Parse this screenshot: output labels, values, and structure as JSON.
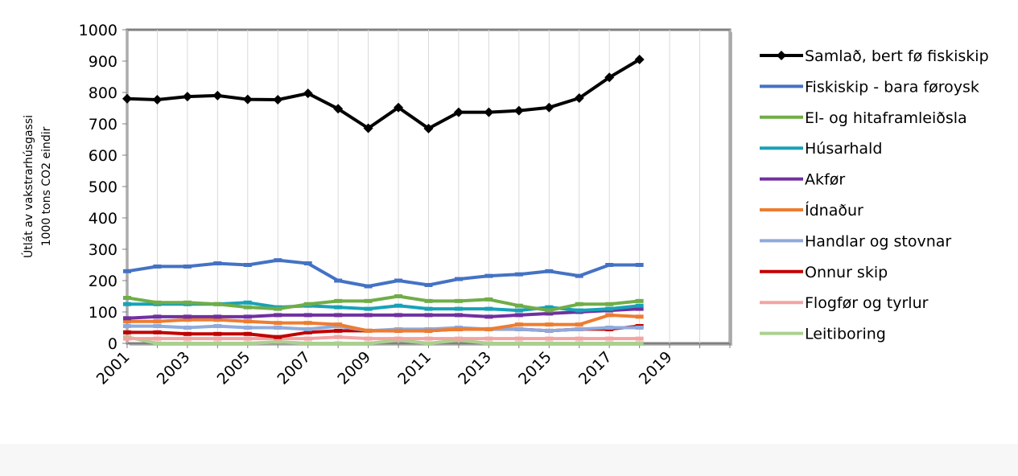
{
  "chart_data": {
    "type": "line",
    "title": "",
    "ylabel_lines": [
      "Útlát av vakstrarhúsgassi",
      "1000 tons CO2 eindir"
    ],
    "xlabel": "",
    "ylim": [
      0,
      1000
    ],
    "y_ticks": [
      "0",
      "100",
      "200",
      "300",
      "400",
      "500",
      "600",
      "700",
      "800",
      "900",
      "1000"
    ],
    "x_range": [
      2001,
      2021
    ],
    "x_ticks": [
      "2001",
      "2003",
      "2005",
      "2007",
      "2009",
      "2011",
      "2013",
      "2015",
      "2017",
      "2019"
    ],
    "x": [
      2001,
      2002,
      2003,
      2004,
      2005,
      2006,
      2007,
      2008,
      2009,
      2010,
      2011,
      2012,
      2013,
      2014,
      2015,
      2016,
      2017,
      2018
    ],
    "legend_position": "right",
    "series": [
      {
        "name": "Samlað, bert fø fiskiskip",
        "color": "#000000",
        "marker": "diamond",
        "values": [
          780,
          777,
          787,
          790,
          778,
          777,
          797,
          748,
          686,
          752,
          685,
          737,
          737,
          742,
          752,
          782,
          848,
          905
        ]
      },
      {
        "name": "Fiskiskip - bara føroysk",
        "color": "#4472c4",
        "marker": "dash",
        "values": [
          230,
          245,
          245,
          255,
          250,
          265,
          255,
          200,
          182,
          200,
          186,
          205,
          215,
          220,
          230,
          215,
          250,
          250
        ]
      },
      {
        "name": "El- og hitaframleiðsla",
        "color": "#70ad47",
        "marker": "dash",
        "values": [
          145,
          130,
          130,
          125,
          115,
          110,
          125,
          135,
          135,
          150,
          135,
          135,
          140,
          120,
          105,
          125,
          125,
          135
        ]
      },
      {
        "name": "Húsarhald",
        "color": "#17a2b8",
        "marker": "dash",
        "values": [
          125,
          125,
          125,
          125,
          130,
          115,
          120,
          115,
          110,
          120,
          110,
          110,
          110,
          105,
          115,
          105,
          110,
          120
        ]
      },
      {
        "name": "Akfør",
        "color": "#7030a0",
        "marker": "dash",
        "values": [
          80,
          85,
          85,
          85,
          85,
          90,
          90,
          90,
          90,
          90,
          90,
          90,
          85,
          90,
          95,
          100,
          105,
          110
        ]
      },
      {
        "name": "Ídnaður",
        "color": "#ed7d31",
        "marker": "dash",
        "values": [
          70,
          70,
          75,
          75,
          70,
          65,
          65,
          60,
          40,
          40,
          40,
          45,
          45,
          60,
          60,
          60,
          90,
          85
        ]
      },
      {
        "name": "Handlar og stovnar",
        "color": "#8faadc",
        "marker": "dash",
        "values": [
          55,
          55,
          50,
          55,
          50,
          50,
          45,
          55,
          40,
          45,
          45,
          50,
          45,
          45,
          40,
          45,
          50,
          50
        ]
      },
      {
        "name": "Onnur skip",
        "color": "#c00000",
        "marker": "dash",
        "values": [
          35,
          35,
          30,
          30,
          30,
          20,
          35,
          40,
          40,
          40,
          40,
          45,
          45,
          45,
          40,
          45,
          45,
          55
        ]
      },
      {
        "name": "Flogfør og tyrlur",
        "color": "#f4a3a3",
        "marker": "dash",
        "values": [
          15,
          15,
          15,
          15,
          15,
          15,
          15,
          20,
          15,
          15,
          15,
          15,
          15,
          15,
          15,
          15,
          15,
          15
        ]
      },
      {
        "name": "Leitiboring",
        "color": "#a9d18e",
        "marker": "dash",
        "values": [
          20,
          0,
          0,
          0,
          0,
          5,
          0,
          0,
          0,
          10,
          0,
          10,
          0,
          0,
          0,
          0,
          0,
          0
        ]
      }
    ]
  }
}
